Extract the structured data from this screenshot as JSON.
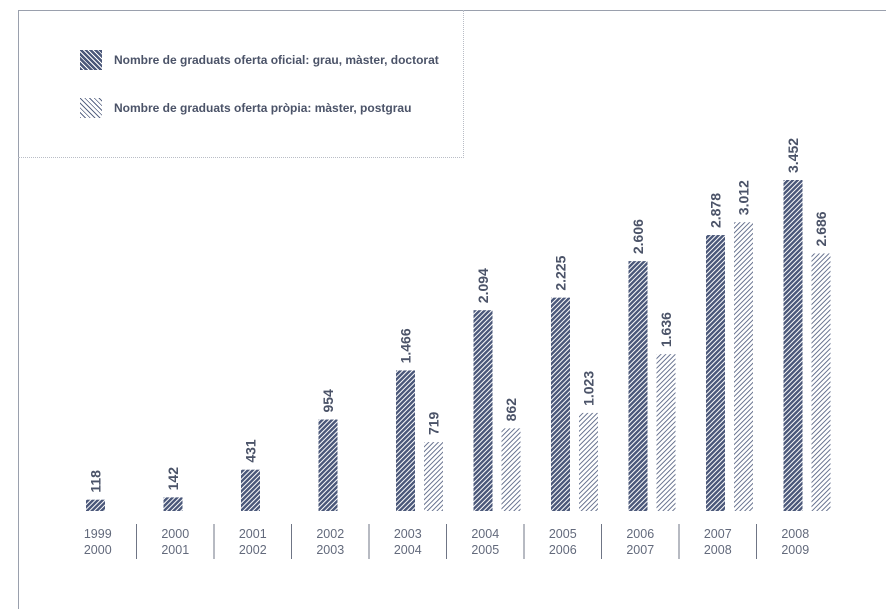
{
  "legend": {
    "official": "Nombre de graduats oferta oficial: grau, màster, doctorat",
    "own": "Nombre de graduats oferta pròpia: màster, postgrau"
  },
  "colors": {
    "bar": "#4a5779",
    "label": "#4b5368",
    "tick": "#636a7c",
    "separator": "#6f7585"
  },
  "chart_data": {
    "type": "bar",
    "title": "",
    "xlabel": "",
    "ylabel": "",
    "ylim": [
      0,
      3600
    ],
    "grid": false,
    "legend_position": "top-left",
    "categories": [
      [
        "1999",
        "2000"
      ],
      [
        "2000",
        "2001"
      ],
      [
        "2001",
        "2002"
      ],
      [
        "2002",
        "2003"
      ],
      [
        "2003",
        "2004"
      ],
      [
        "2004",
        "2005"
      ],
      [
        "2005",
        "2006"
      ],
      [
        "2006",
        "2007"
      ],
      [
        "2007",
        "2008"
      ],
      [
        "2008",
        "2009"
      ]
    ],
    "series": [
      {
        "name": "Nombre de graduats oferta oficial: grau, màster, doctorat",
        "values": [
          118,
          142,
          431,
          954,
          1466,
          2094,
          2225,
          2606,
          2878,
          3452
        ],
        "labels": [
          "118",
          "142",
          "431",
          "954",
          "1.466",
          "2.094",
          "2.225",
          "2.606",
          "2.878",
          "3.452"
        ]
      },
      {
        "name": "Nombre de graduats oferta pròpia: màster, postgrau",
        "values": [
          null,
          null,
          null,
          null,
          719,
          862,
          1023,
          1636,
          3012,
          2686
        ],
        "labels": [
          "",
          "",
          "",
          "",
          "719",
          "862",
          "1.023",
          "1.636",
          "3.012",
          "2.686"
        ]
      }
    ]
  }
}
